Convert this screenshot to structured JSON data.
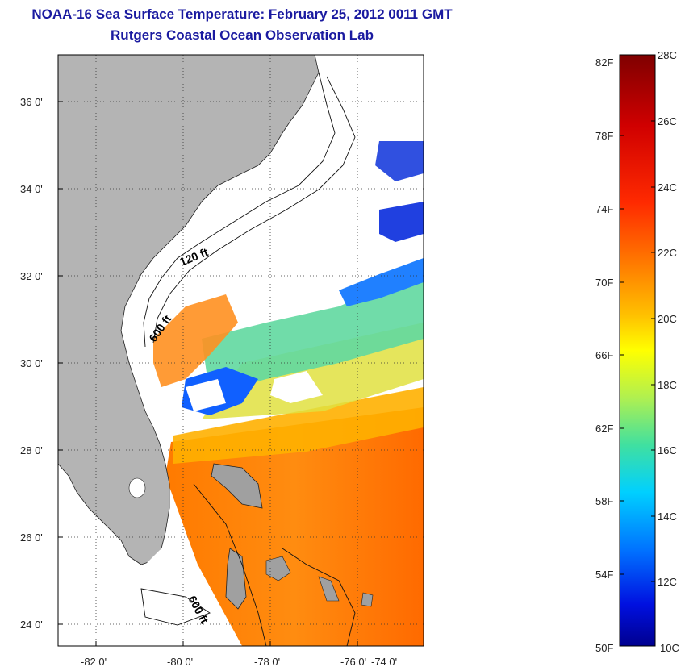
{
  "title": {
    "line1": "NOAA-16 Sea Surface Temperature:  February 25, 2012 0011 GMT",
    "line2": "Rutgers Coastal Ocean Observation Lab"
  },
  "map": {
    "lon_ticks": [
      "-82 0'",
      "-80 0'",
      "-78 0'",
      "-76 0'",
      "-74 0'"
    ],
    "lat_ticks": [
      "36 0'",
      "34 0'",
      "32 0'",
      "30 0'",
      "28 0'",
      "26 0'",
      "24 0'"
    ],
    "contour_labels": [
      "120 ft",
      "600 ft",
      "600 ft"
    ],
    "land_color": "#b4b4b4",
    "no_data_color": "#ffffff"
  },
  "colorbar": {
    "celsius_labels": [
      "28C",
      "26C",
      "24C",
      "22C",
      "20C",
      "18C",
      "16C",
      "14C",
      "12C",
      "10C"
    ],
    "fahrenheit_labels": [
      "82F",
      "78F",
      "74F",
      "70F",
      "66F",
      "62F",
      "58F",
      "54F",
      "50F"
    ],
    "colormap": [
      "#7f0000",
      "#c00000",
      "#ff0000",
      "#ff5500",
      "#ff9900",
      "#ffcc00",
      "#ffff00",
      "#c8f040",
      "#80e080",
      "#40e0c0",
      "#00d0ff",
      "#0090ff",
      "#0050ff",
      "#0010e0",
      "#00008f"
    ]
  }
}
